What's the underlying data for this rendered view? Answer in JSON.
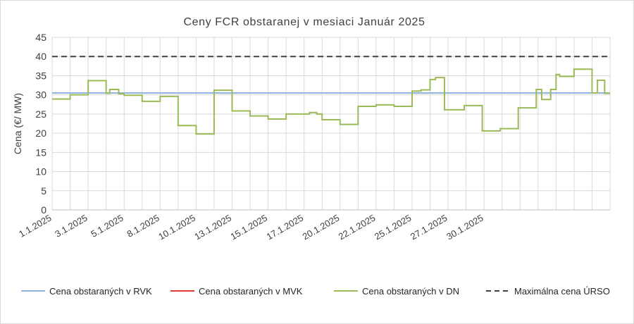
{
  "chart_data": {
    "type": "line",
    "title": "Ceny  FCR  obstaranej  v  mesiaci  Január  2025",
    "ylabel": "Cena (€/ MW)",
    "xlabel": "",
    "ylim": [
      0,
      45
    ],
    "yticks": [
      0,
      5,
      10,
      15,
      20,
      25,
      30,
      35,
      40,
      45
    ],
    "xlim": [
      1,
      32
    ],
    "xtick_labels": [
      {
        "x": 1,
        "label": "1.1.2025"
      },
      {
        "x": 3,
        "label": "3.1.2025"
      },
      {
        "x": 5,
        "label": "5.1.2025"
      },
      {
        "x": 7,
        "label": "8.1.2025"
      },
      {
        "x": 9,
        "label": "10.1.2025"
      },
      {
        "x": 11,
        "label": "13.1.2025"
      },
      {
        "x": 13,
        "label": "15.1.2025"
      },
      {
        "x": 15,
        "label": "17.1.2025"
      },
      {
        "x": 17,
        "label": "20.1.2025"
      },
      {
        "x": 19,
        "label": "22.1.2025"
      },
      {
        "x": 21,
        "label": "25.1.2025"
      },
      {
        "x": 23,
        "label": "27.1.2025"
      },
      {
        "x": 25,
        "label": "30.1.2025"
      }
    ],
    "grid": true,
    "legend_position": "bottom",
    "series": [
      {
        "name": "Cena obstaraných v RVK",
        "color": "#8FB4E3",
        "style": "solid",
        "points": [
          [
            1,
            30.5
          ],
          [
            32,
            30.5
          ]
        ]
      },
      {
        "name": "Cena obstaraných v MVK",
        "color": "#E03C31",
        "style": "solid",
        "points": []
      },
      {
        "name": "Cena obstaraných v DN",
        "color": "#9BBB59",
        "style": "solid",
        "step": true,
        "points": [
          [
            1.0,
            28.9
          ],
          [
            2.0,
            30.0
          ],
          [
            3.0,
            33.7
          ],
          [
            4.0,
            30.4
          ],
          [
            4.2,
            31.4
          ],
          [
            4.7,
            30.3
          ],
          [
            5.0,
            29.9
          ],
          [
            6.0,
            28.3
          ],
          [
            7.0,
            29.6
          ],
          [
            8.0,
            22.0
          ],
          [
            9.0,
            19.8
          ],
          [
            10.0,
            31.2
          ],
          [
            11.0,
            25.8
          ],
          [
            12.0,
            24.5
          ],
          [
            13.0,
            23.7
          ],
          [
            14.0,
            25.0
          ],
          [
            15.3,
            25.4
          ],
          [
            15.7,
            25.0
          ],
          [
            16.0,
            23.5
          ],
          [
            17.0,
            22.3
          ],
          [
            18.0,
            27.0
          ],
          [
            19.0,
            27.4
          ],
          [
            20.0,
            27.0
          ],
          [
            21.0,
            31.0
          ],
          [
            21.5,
            31.3
          ],
          [
            22.0,
            34.0
          ],
          [
            22.3,
            34.5
          ],
          [
            22.8,
            26.1
          ],
          [
            23.9,
            27.2
          ],
          [
            24.9,
            20.6
          ],
          [
            25.9,
            21.2
          ],
          [
            26.9,
            26.6
          ],
          [
            27.9,
            31.4
          ],
          [
            28.2,
            28.8
          ],
          [
            28.7,
            31.4
          ],
          [
            29.0,
            35.3
          ],
          [
            29.2,
            34.8
          ],
          [
            30.0,
            36.7
          ],
          [
            31.0,
            30.5
          ],
          [
            31.3,
            33.8
          ],
          [
            31.7,
            30.4
          ],
          [
            32.0,
            30.4
          ]
        ]
      },
      {
        "name": "Maximálna cena ÚRSO",
        "color": "#404040",
        "style": "dashed",
        "points": [
          [
            1,
            40
          ],
          [
            32,
            40
          ]
        ]
      }
    ]
  }
}
